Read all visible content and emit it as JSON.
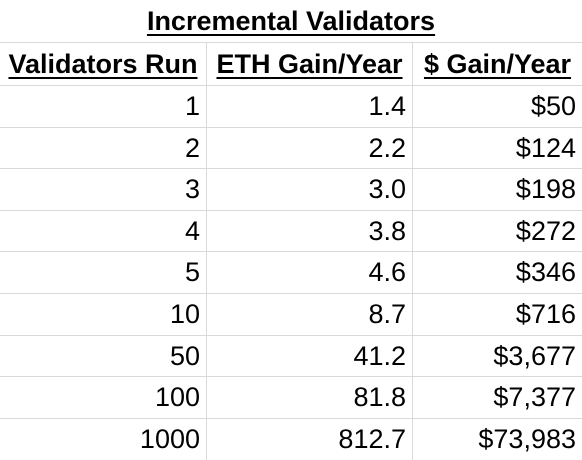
{
  "title": "Incremental Validators",
  "chart_data": {
    "type": "table",
    "title": "Incremental Validators",
    "columns": [
      "Validators Run",
      "ETH Gain/Year",
      "$ Gain/Year"
    ],
    "rows": [
      [
        "1",
        "1.4",
        "$50"
      ],
      [
        "2",
        "2.2",
        "$124"
      ],
      [
        "3",
        "3.0",
        "$198"
      ],
      [
        "4",
        "3.8",
        "$272"
      ],
      [
        "5",
        "4.6",
        "$346"
      ],
      [
        "10",
        "8.7",
        "$716"
      ],
      [
        "50",
        "41.2",
        "$3,677"
      ],
      [
        "100",
        "81.8",
        "$7,377"
      ],
      [
        "1000",
        "812.7",
        "$73,983"
      ]
    ]
  },
  "colors": {
    "gridline": "#d9d9d9",
    "text": "#000000",
    "background": "#ffffff"
  }
}
